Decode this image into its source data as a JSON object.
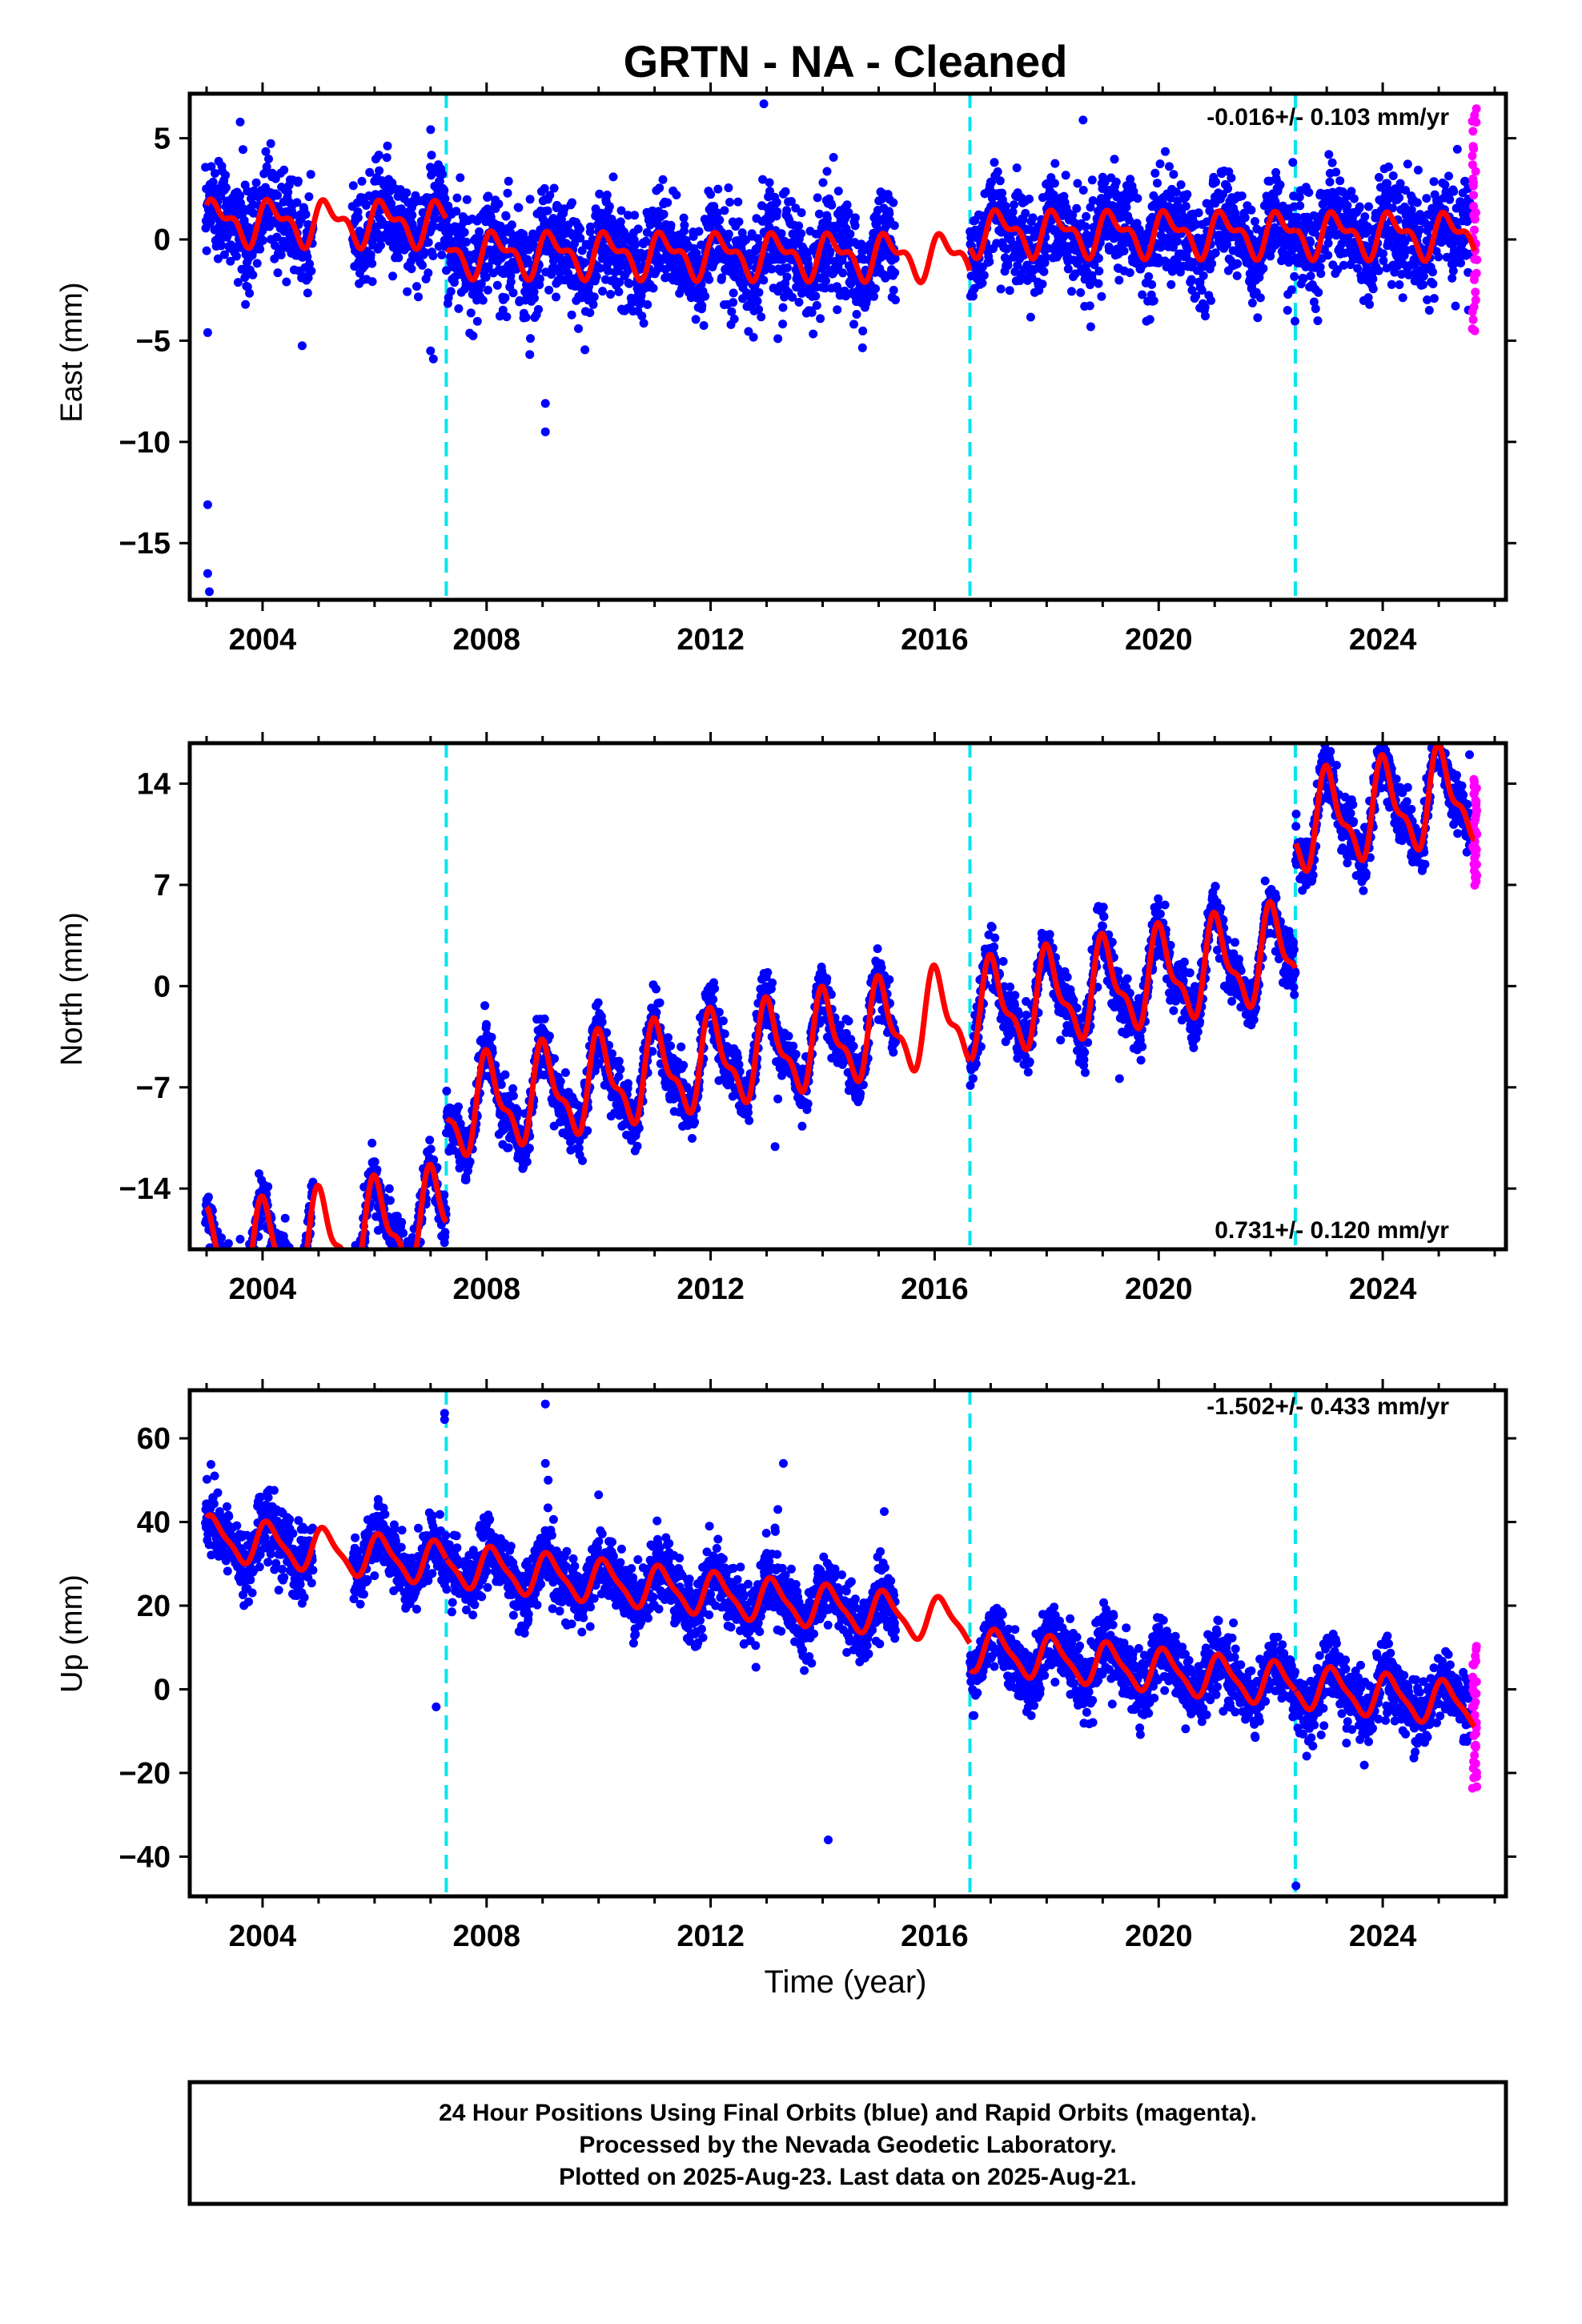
{
  "chart_data": {
    "type": "scatter",
    "title": "GRTN  - NA - Cleaned",
    "xlabel": "Time (year)",
    "xlim": [
      2002.7,
      2026.2
    ],
    "xticks": [
      2004,
      2008,
      2012,
      2016,
      2020,
      2024
    ],
    "xtick_labels": [
      "2004",
      "2008",
      "2012",
      "2016",
      "2020",
      "2024"
    ],
    "final_color": "#0000ff",
    "rapid_color": "#ff00ff",
    "model_color": "#ff0000",
    "break_color": "#00e5ee",
    "last_data_year": 2025.64,
    "breaks": [
      2007.28,
      2016.63,
      2022.44
    ],
    "panels": [
      {
        "name": "East",
        "ylabel": "East (mm)",
        "ylim": [
          -17.8,
          7.2
        ],
        "yticks": [
          5,
          0,
          -5,
          -10,
          -15
        ],
        "ytick_labels": [
          "5",
          "0",
          "−5",
          "−10",
          "−15"
        ],
        "rate_label": "-0.016+/- 0.103 mm/yr",
        "rate_position": "top-right",
        "model": {
          "offsets": [
            0.7,
            -0.8,
            0.4,
            0.4
          ],
          "trend": -0.016,
          "amp1": 0.9,
          "phase1": 0.4,
          "amp2": 0.5,
          "phase2": 1.2,
          "noise": 1.25
        },
        "outliers": [
          [
            2003.02,
            -13.1
          ],
          [
            2003.02,
            -16.5
          ],
          [
            2003.05,
            -17.4
          ],
          [
            2003.02,
            -4.6
          ],
          [
            2009.05,
            -8.1
          ],
          [
            2009.05,
            -9.5
          ],
          [
            2012.95,
            6.7
          ],
          [
            2018.65,
            5.9
          ],
          [
            2003.6,
            5.8
          ],
          [
            2007.0,
            -5.5
          ],
          [
            2007.05,
            -5.9
          ],
          [
            2013.2,
            -4.9
          ],
          [
            2022.3,
            -3.5
          ]
        ],
        "rapid_range": [
          -4.6,
          6.5
        ],
        "gaps": [
          [
            2004.9,
            2005.6
          ],
          [
            2015.3,
            2016.63
          ]
        ]
      },
      {
        "name": "North",
        "ylabel": "North (mm)",
        "ylim": [
          -18.2,
          16.8
        ],
        "yticks": [
          14,
          7,
          0,
          -7,
          -14
        ],
        "ytick_labels": [
          "14",
          "7",
          "0",
          "−7",
          "−14"
        ],
        "rate_label": "0.731+/- 0.120 mm/yr",
        "rate_position": "bottom-right",
        "model": {
          "offsets": [
            -11.0,
            -3.8,
            -3.8,
            4.9
          ],
          "trend": 0.731,
          "amp1": 2.9,
          "phase1": 1.3,
          "amp2": 1.2,
          "phase2": 2.2,
          "noise": 1.0
        },
        "outliers": [
          [
            2003.6,
            -17.5
          ],
          [
            2013.15,
            -11.1
          ],
          [
            2013.2,
            -7.8
          ],
          [
            2019.3,
            -6.4
          ],
          [
            2025.55,
            16.0
          ],
          [
            2009.8,
            -10.0
          ]
        ],
        "rapid_range": [
          7.0,
          14.2
        ],
        "gaps": [
          [
            2004.9,
            2005.6
          ],
          [
            2015.3,
            2016.63
          ]
        ]
      },
      {
        "name": "Up",
        "ylabel": "Up (mm)",
        "ylim": [
          -49.5,
          71.5
        ],
        "yticks": [
          60,
          40,
          20,
          0,
          -20,
          -40
        ],
        "ytick_labels": [
          "60",
          "40",
          "20",
          "0",
          "−20",
          "−40"
        ],
        "rate_label": "-1.502+/- 0.433 mm/yr",
        "rate_position": "top-right",
        "model": {
          "offsets": [
            19.8,
            19.8,
            13.5,
            13.5
          ],
          "trend": -1.502,
          "amp1": 4.8,
          "phase1": 0.8,
          "amp2": 1.3,
          "phase2": 1.5,
          "noise": 4.0
        },
        "outliers": [
          [
            2007.25,
            66.0
          ],
          [
            2007.25,
            64.5
          ],
          [
            2009.05,
            68.2
          ],
          [
            2009.05,
            54.0
          ],
          [
            2009.1,
            50.0
          ],
          [
            2010.0,
            46.5
          ],
          [
            2013.2,
            43.0
          ],
          [
            2013.3,
            54.0
          ],
          [
            2015.1,
            42.5
          ],
          [
            2014.05,
            25.5
          ],
          [
            2014.1,
            -36.0
          ],
          [
            2022.45,
            -47.0
          ],
          [
            2007.1,
            -4.2
          ]
        ],
        "rapid_range": [
          -24.0,
          10.5
        ],
        "gaps": [
          [
            2004.9,
            2005.6
          ],
          [
            2015.3,
            2016.63
          ]
        ]
      }
    ]
  },
  "footer": {
    "line1": "24 Hour Positions Using Final Orbits (blue) and Rapid Orbits (magenta).",
    "line2": "Processed by the Nevada Geodetic Laboratory.",
    "line3": "Plotted on 2025-Aug-23. Last data on 2025-Aug-21."
  }
}
